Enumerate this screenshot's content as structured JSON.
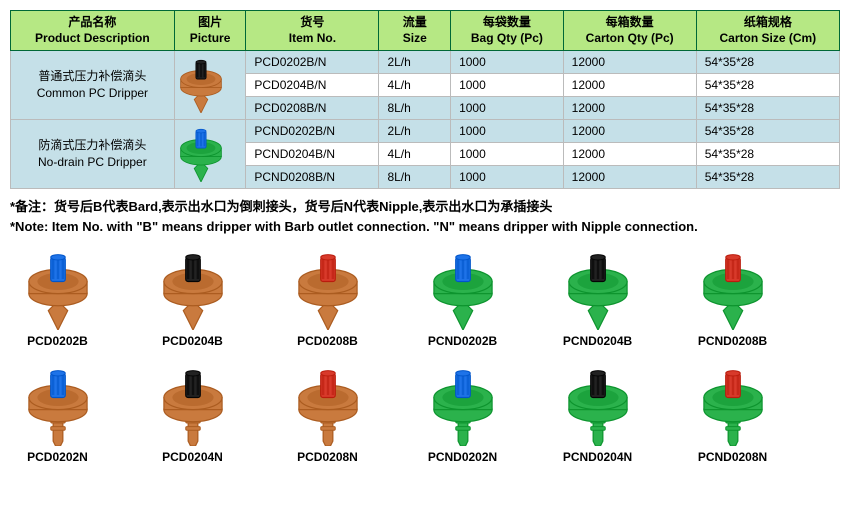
{
  "headers": {
    "desc_cn": "产品名称",
    "desc_en": "Product Description",
    "pic_cn": "图片",
    "pic_en": "Picture",
    "item_cn": "货号",
    "item_en": "Item No.",
    "size_cn": "流量",
    "size_en": "Size",
    "bag_cn": "每袋数量",
    "bag_en": "Bag Qty (Pc)",
    "ctn_cn": "每箱数量",
    "ctn_en": "Carton Qty (Pc)",
    "cs_cn": "纸箱规格",
    "cs_en": "Carton Size (Cm)"
  },
  "col_widths": [
    "160px",
    "70px",
    "130px",
    "70px",
    "110px",
    "130px",
    "140px"
  ],
  "groups": [
    {
      "desc_cn": "普通式压力补偿滴头",
      "desc_en": "Common PC Dripper",
      "pic": {
        "body": "#c97a3e",
        "stem": "#222222"
      },
      "rows": [
        {
          "item": "PCD0202B/N",
          "size": "2L/h",
          "bag": "1000",
          "ctn": "12000",
          "cs": "54*35*28"
        },
        {
          "item": "PCD0204B/N",
          "size": "4L/h",
          "bag": "1000",
          "ctn": "12000",
          "cs": "54*35*28"
        },
        {
          "item": "PCD0208B/N",
          "size": "8L/h",
          "bag": "1000",
          "ctn": "12000",
          "cs": "54*35*28"
        }
      ]
    },
    {
      "desc_cn": "防滴式压力补偿滴头",
      "desc_en": "No-drain PC Dripper",
      "pic": {
        "body": "#2bb24c",
        "stem": "#1e73e8"
      },
      "rows": [
        {
          "item": "PCND0202B/N",
          "size": "2L/h",
          "bag": "1000",
          "ctn": "12000",
          "cs": "54*35*28"
        },
        {
          "item": "PCND0204B/N",
          "size": "4L/h",
          "bag": "1000",
          "ctn": "12000",
          "cs": "54*35*28"
        },
        {
          "item": "PCND0208B/N",
          "size": "8L/h",
          "bag": "1000",
          "ctn": "12000",
          "cs": "54*35*28"
        }
      ]
    }
  ],
  "note_cn": "*备注：货号后B代表Bard,表示出水口为倒刺接头，货号后N代表Nipple,表示出水口为承插接头",
  "note_en": "*Note: Item No. with \"B\" means dripper with Barb outlet connection. \"N\" means dripper with Nipple connection.",
  "colors": {
    "brown": "#c97a3e",
    "green": "#2bb24c",
    "blue": "#1e73e8",
    "black": "#222222",
    "red": "#d83a2b"
  },
  "gallery": [
    {
      "group": [
        {
          "label": "PCD0202B",
          "body": "brown",
          "stem": "blue",
          "barb": true
        },
        {
          "label": "PCD0204B",
          "body": "brown",
          "stem": "black",
          "barb": true
        },
        {
          "label": "PCD0208B",
          "body": "brown",
          "stem": "red",
          "barb": true
        }
      ]
    },
    {
      "group": [
        {
          "label": "PCND0202B",
          "body": "green",
          "stem": "blue",
          "barb": true
        },
        {
          "label": "PCND0204B",
          "body": "green",
          "stem": "black",
          "barb": true
        },
        {
          "label": "PCND0208B",
          "body": "green",
          "stem": "red",
          "barb": true
        }
      ]
    },
    {
      "group": [
        {
          "label": "PCD0202N",
          "body": "brown",
          "stem": "blue",
          "barb": false
        },
        {
          "label": "PCD0204N",
          "body": "brown",
          "stem": "black",
          "barb": false
        },
        {
          "label": "PCD0208N",
          "body": "brown",
          "stem": "red",
          "barb": false
        }
      ]
    },
    {
      "group": [
        {
          "label": "PCND0202N",
          "body": "green",
          "stem": "blue",
          "barb": false
        },
        {
          "label": "PCND0204N",
          "body": "green",
          "stem": "black",
          "barb": false
        },
        {
          "label": "PCND0208N",
          "body": "green",
          "stem": "red",
          "barb": false
        }
      ]
    }
  ]
}
